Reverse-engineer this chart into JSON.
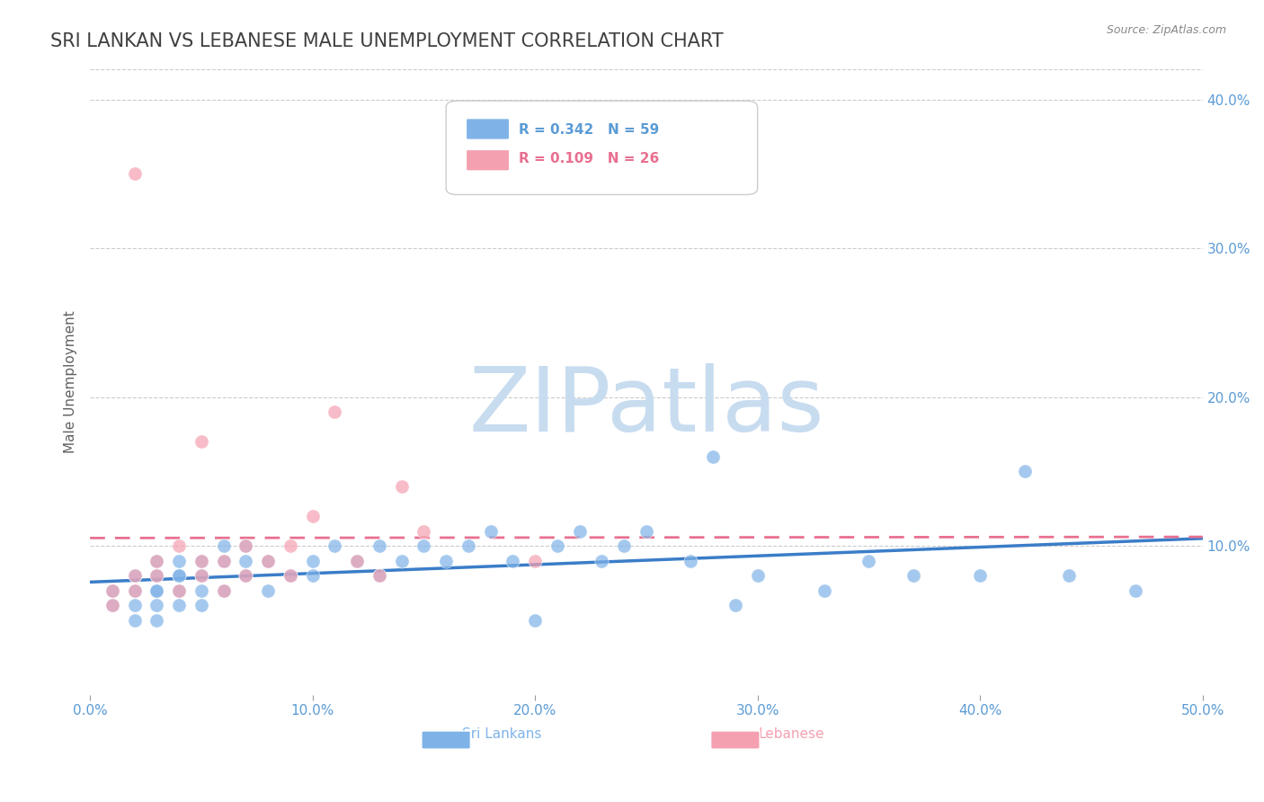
{
  "title": "SRI LANKAN VS LEBANESE MALE UNEMPLOYMENT CORRELATION CHART",
  "source_text": "Source: ZipAtlas.com",
  "xlabel": "",
  "ylabel": "Male Unemployment",
  "xlim": [
    0.0,
    0.5
  ],
  "ylim": [
    0.0,
    0.42
  ],
  "xticks": [
    0.0,
    0.1,
    0.2,
    0.3,
    0.4,
    0.5
  ],
  "yticks": [
    0.1,
    0.2,
    0.3,
    0.4
  ],
  "ytick_labels": [
    "10.0%",
    "20.0%",
    "30.0%",
    "40.0%"
  ],
  "xtick_labels": [
    "0.0%",
    "10.0%",
    "20.0%",
    "30.0%",
    "40.0%",
    "50.0%"
  ],
  "sri_lankan_R": 0.342,
  "sri_lankan_N": 59,
  "lebanese_R": 0.109,
  "lebanese_N": 26,
  "sri_lankan_color": "#7FB3E8",
  "lebanese_color": "#F4A0B0",
  "sri_lankan_line_color": "#3B7DC8",
  "lebanese_line_color": "#E87090",
  "watermark_text": "ZIPatlas",
  "watermark_color": "#C8DCF0",
  "background_color": "#FFFFFF",
  "grid_color": "#CCCCCC",
  "title_color": "#404040",
  "axis_label_color": "#606060",
  "tick_color_x": "#5B9BD5",
  "tick_color_y": "#5B9BD5",
  "legend_R_color": "#5B9BD5",
  "legend_N_color": "#5B9BD5",
  "sri_lankans_x": [
    0.01,
    0.01,
    0.02,
    0.02,
    0.02,
    0.02,
    0.03,
    0.03,
    0.03,
    0.03,
    0.03,
    0.03,
    0.04,
    0.04,
    0.04,
    0.04,
    0.04,
    0.05,
    0.05,
    0.05,
    0.05,
    0.06,
    0.06,
    0.06,
    0.07,
    0.07,
    0.07,
    0.08,
    0.08,
    0.09,
    0.1,
    0.1,
    0.11,
    0.12,
    0.13,
    0.13,
    0.14,
    0.15,
    0.16,
    0.17,
    0.18,
    0.19,
    0.2,
    0.21,
    0.22,
    0.23,
    0.24,
    0.25,
    0.27,
    0.28,
    0.29,
    0.3,
    0.33,
    0.35,
    0.37,
    0.4,
    0.42,
    0.44,
    0.47
  ],
  "sri_lankans_y": [
    0.07,
    0.06,
    0.08,
    0.07,
    0.06,
    0.05,
    0.09,
    0.08,
    0.07,
    0.07,
    0.06,
    0.05,
    0.09,
    0.08,
    0.08,
    0.07,
    0.06,
    0.09,
    0.08,
    0.07,
    0.06,
    0.1,
    0.09,
    0.07,
    0.1,
    0.09,
    0.08,
    0.09,
    0.07,
    0.08,
    0.09,
    0.08,
    0.1,
    0.09,
    0.1,
    0.08,
    0.09,
    0.1,
    0.09,
    0.1,
    0.11,
    0.09,
    0.05,
    0.1,
    0.11,
    0.09,
    0.1,
    0.11,
    0.09,
    0.16,
    0.06,
    0.08,
    0.07,
    0.09,
    0.08,
    0.08,
    0.15,
    0.08,
    0.07
  ],
  "lebanese_x": [
    0.01,
    0.01,
    0.02,
    0.02,
    0.02,
    0.03,
    0.03,
    0.04,
    0.04,
    0.05,
    0.05,
    0.05,
    0.06,
    0.06,
    0.07,
    0.07,
    0.08,
    0.09,
    0.09,
    0.1,
    0.11,
    0.12,
    0.13,
    0.14,
    0.15,
    0.2
  ],
  "lebanese_y": [
    0.07,
    0.06,
    0.35,
    0.08,
    0.07,
    0.09,
    0.08,
    0.1,
    0.07,
    0.17,
    0.09,
    0.08,
    0.09,
    0.07,
    0.1,
    0.08,
    0.09,
    0.1,
    0.08,
    0.12,
    0.19,
    0.09,
    0.08,
    0.14,
    0.11,
    0.09
  ]
}
